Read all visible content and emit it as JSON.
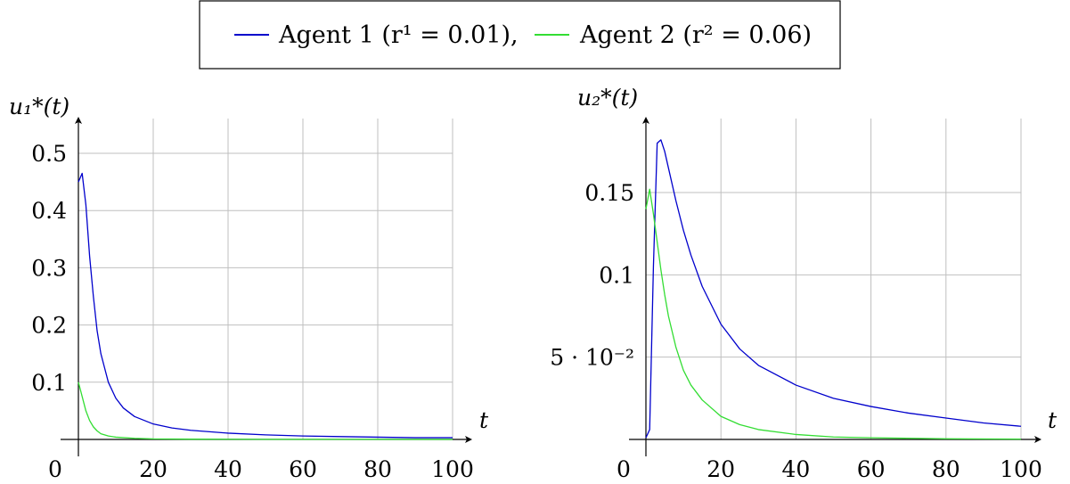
{
  "legend": {
    "entries": [
      {
        "label": "Agent 1 (r¹ = 0.01),",
        "color": "#0000cc"
      },
      {
        "label": "Agent 2 (r² = 0.06)",
        "color": "#33dd33"
      }
    ]
  },
  "chart_data": [
    {
      "type": "line",
      "ylabel": "u₁*(t)",
      "xlabel": "t",
      "xlim": [
        0,
        100
      ],
      "ylim": [
        0,
        0.53
      ],
      "xticks": [
        20,
        40,
        60,
        80,
        100
      ],
      "xtick_labels": [
        "20",
        "40",
        "60",
        "80",
        "100"
      ],
      "origin_label": "0",
      "yticks": [
        0.1,
        0.2,
        0.3,
        0.4,
        0.5
      ],
      "ytick_labels": [
        "0.1",
        "0.2",
        "0.3",
        "0.4",
        "0.5"
      ],
      "grid": true,
      "series": [
        {
          "name": "Agent 1 (r¹ = 0.01)",
          "color": "#0000cc",
          "x": [
            0,
            1,
            2,
            3,
            4,
            5,
            6,
            7,
            8,
            10,
            12,
            15,
            20,
            25,
            30,
            40,
            50,
            60,
            70,
            80,
            90,
            100
          ],
          "y": [
            0.45,
            0.465,
            0.41,
            0.32,
            0.25,
            0.19,
            0.15,
            0.125,
            0.1,
            0.072,
            0.055,
            0.04,
            0.027,
            0.02,
            0.016,
            0.011,
            0.008,
            0.006,
            0.005,
            0.004,
            0.003,
            0.003
          ]
        },
        {
          "name": "Agent 2 (r² = 0.06)",
          "color": "#33dd33",
          "x": [
            0,
            1,
            2,
            3,
            4,
            5,
            6,
            8,
            10,
            15,
            20,
            30,
            50,
            100
          ],
          "y": [
            0.1,
            0.075,
            0.05,
            0.033,
            0.022,
            0.015,
            0.01,
            0.006,
            0.004,
            0.002,
            0.001,
            0.0005,
            0.0002,
            0.0001
          ]
        }
      ]
    },
    {
      "type": "line",
      "ylabel": "u₂*(t)",
      "xlabel": "t",
      "xlim": [
        0,
        100
      ],
      "ylim": [
        0,
        0.19
      ],
      "xticks": [
        20,
        40,
        60,
        80,
        100
      ],
      "xtick_labels": [
        "20",
        "40",
        "60",
        "80",
        "100"
      ],
      "origin_label": "0",
      "yticks": [
        0.05,
        0.1,
        0.15
      ],
      "ytick_labels": [
        "5 · 10⁻²",
        "0.1",
        "0.15"
      ],
      "grid": true,
      "series": [
        {
          "name": "Agent 1 (r¹ = 0.01)",
          "color": "#0000cc",
          "x": [
            0,
            1,
            2,
            3,
            4,
            5,
            6,
            8,
            10,
            12,
            15,
            20,
            25,
            30,
            40,
            50,
            60,
            70,
            80,
            90,
            100
          ],
          "y": [
            0.001,
            0.006,
            0.105,
            0.18,
            0.182,
            0.175,
            0.165,
            0.145,
            0.127,
            0.112,
            0.093,
            0.07,
            0.055,
            0.045,
            0.033,
            0.025,
            0.02,
            0.016,
            0.013,
            0.01,
            0.008
          ]
        },
        {
          "name": "Agent 2 (r² = 0.06)",
          "color": "#33dd33",
          "x": [
            0,
            1,
            2,
            3,
            4,
            5,
            6,
            8,
            10,
            12,
            15,
            20,
            25,
            30,
            40,
            50,
            60,
            80,
            100
          ],
          "y": [
            0.14,
            0.152,
            0.137,
            0.12,
            0.103,
            0.088,
            0.075,
            0.056,
            0.042,
            0.033,
            0.024,
            0.014,
            0.009,
            0.006,
            0.003,
            0.0015,
            0.001,
            0.0004,
            0.0002
          ]
        }
      ]
    }
  ]
}
